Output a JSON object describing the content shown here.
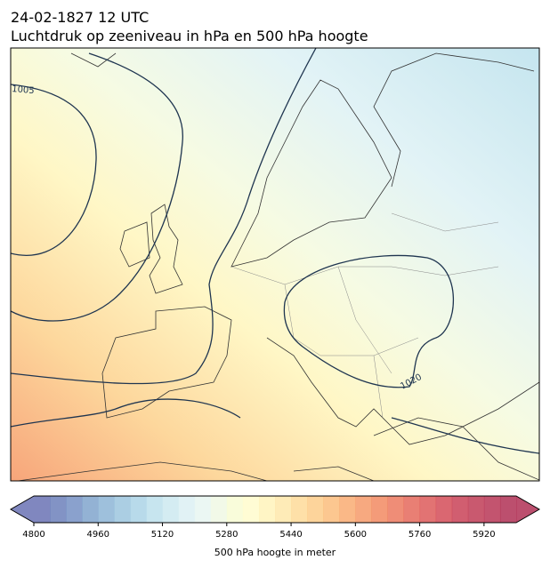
{
  "header": {
    "title": "24-02-1827 12 UTC",
    "subtitle": "Luchtdruk op zeeniveau in hPa en 500 hPa hoogte"
  },
  "map": {
    "contour_labels": [
      "1005",
      "1020"
    ]
  },
  "colorbar": {
    "label": "500 hPa hoogte in meter",
    "lim": [
      4800,
      6000
    ],
    "ticks": [
      4800,
      4960,
      5120,
      5280,
      5440,
      5600,
      5760,
      5920
    ],
    "colors": [
      "#6a72b4",
      "#6c80bb",
      "#7591c4",
      "#80a4cc",
      "#8db5d6",
      "#9cc5de",
      "#acd4e6",
      "#bde0ec",
      "#cde9f0",
      "#dcf0f3",
      "#e8f6f1",
      "#f0f8e4",
      "#f8fbd4",
      "#fffbcc",
      "#fff3bb",
      "#fee8aa",
      "#fedb99",
      "#fdcd8a",
      "#fcbd7d",
      "#f9ab72",
      "#f69a6a",
      "#f28a62",
      "#ec795f",
      "#e5695c",
      "#dd5a5a",
      "#d34c58",
      "#c94257",
      "#c03c56",
      "#b83656",
      "#b03055"
    ]
  }
}
